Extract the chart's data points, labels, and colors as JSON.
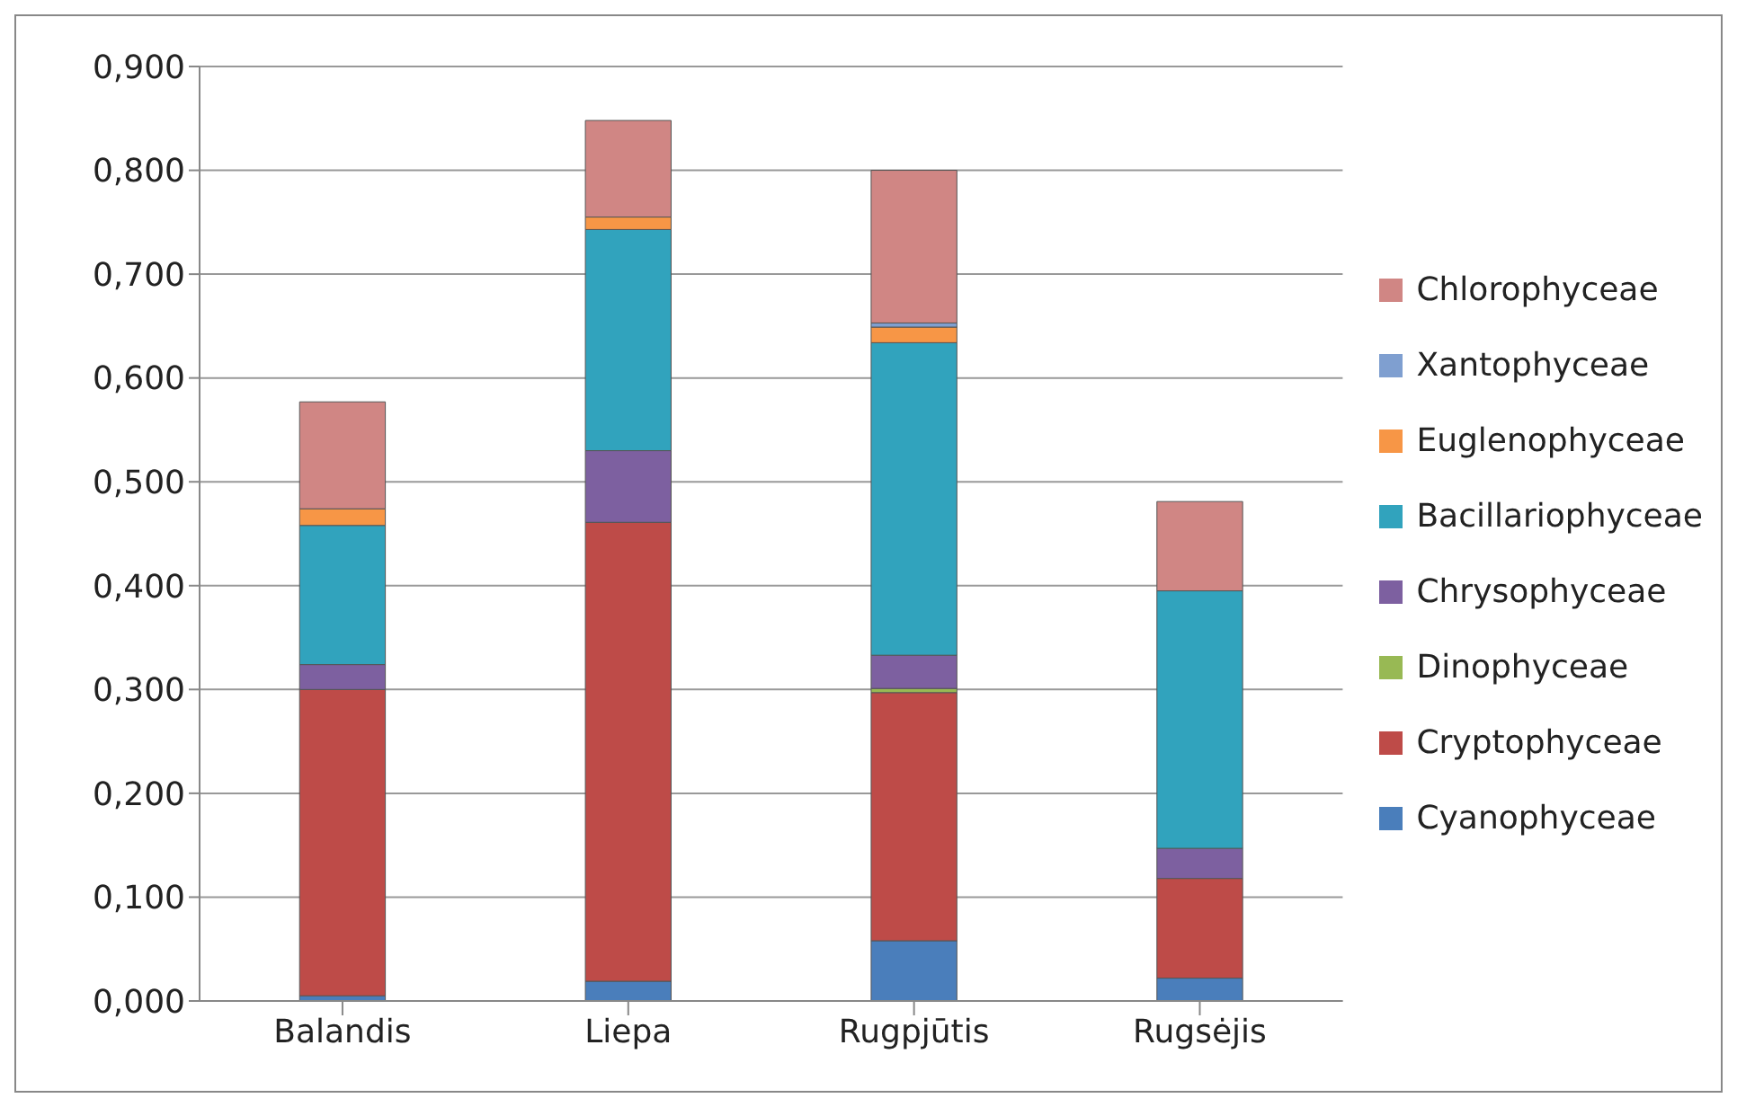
{
  "chart_data": {
    "type": "bar",
    "stacked": true,
    "categories": [
      "Balandis",
      "Liepa",
      "Rugpjūtis",
      "Rugsėjis"
    ],
    "series": [
      {
        "name": "Cyanophyceae",
        "color": "#4a7ebb",
        "values": [
          0.005,
          0.019,
          0.058,
          0.022
        ]
      },
      {
        "name": "Cryptophyceae",
        "color": "#be4b48",
        "values": [
          0.295,
          0.442,
          0.239,
          0.096
        ]
      },
      {
        "name": "Dinophyceae",
        "color": "#98b954",
        "values": [
          0,
          0,
          0.004,
          0
        ]
      },
      {
        "name": "Chrysophyceae",
        "color": "#7d60a0",
        "values": [
          0.024,
          0.069,
          0.032,
          0.029
        ]
      },
      {
        "name": "Bacillariophyceae",
        "color": "#31a3bd",
        "values": [
          0.134,
          0.213,
          0.301,
          0.248
        ]
      },
      {
        "name": "Euglenophyceae",
        "color": "#f79646",
        "values": [
          0.016,
          0.012,
          0.015,
          0
        ]
      },
      {
        "name": "Xantophyceae",
        "color": "#7f9fd0",
        "values": [
          0,
          0,
          0.004,
          0
        ]
      },
      {
        "name": "Chlorophyceae",
        "color": "#d08684",
        "values": [
          0.103,
          0.093,
          0.147,
          0.086
        ]
      }
    ],
    "ylim": [
      0,
      0.9
    ],
    "yticks": [
      {
        "value": 0,
        "label": "0,000"
      },
      {
        "value": 0.1,
        "label": "0,100"
      },
      {
        "value": 0.2,
        "label": "0,200"
      },
      {
        "value": 0.3,
        "label": "0,300"
      },
      {
        "value": 0.4,
        "label": "0,400"
      },
      {
        "value": 0.5,
        "label": "0,500"
      },
      {
        "value": 0.6,
        "label": "0,600"
      },
      {
        "value": 0.7,
        "label": "0,700"
      },
      {
        "value": 0.8,
        "label": "0,800"
      },
      {
        "value": 0.9,
        "label": "0,900"
      }
    ],
    "grid": "y",
    "legend": "right"
  }
}
